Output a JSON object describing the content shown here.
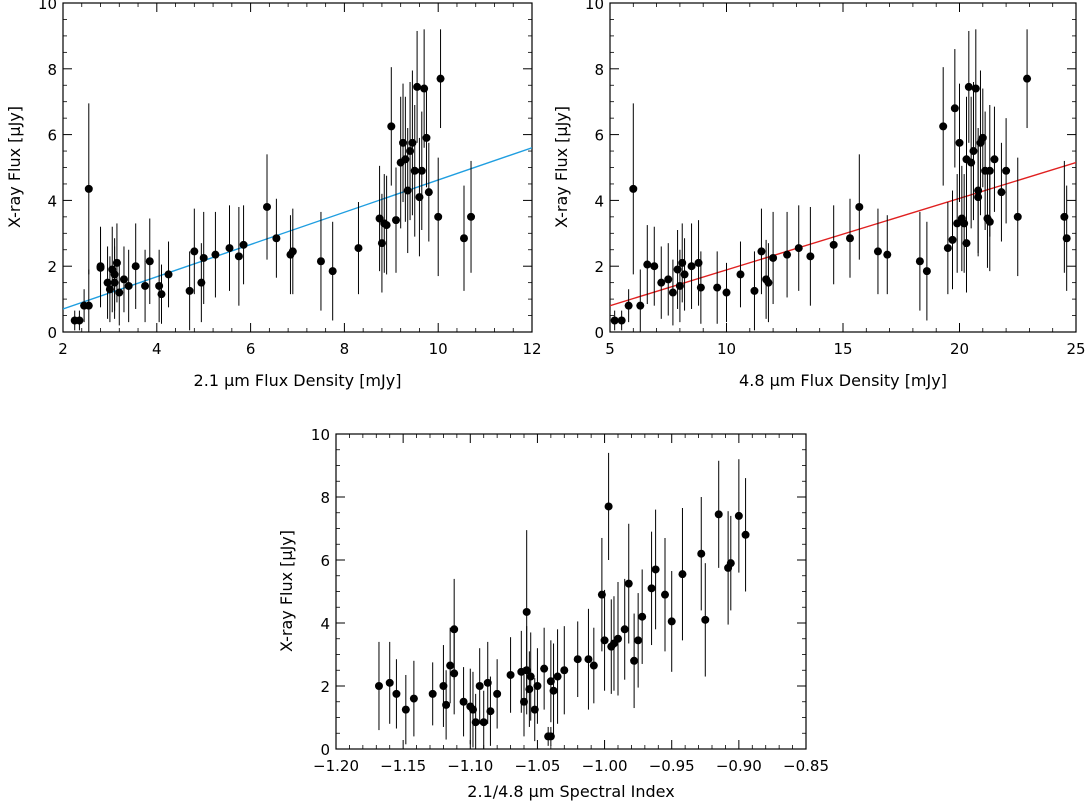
{
  "chart_data": [
    {
      "type": "scatter",
      "title": "",
      "xlabel": "2.1 μm Flux Density [mJy]",
      "ylabel": "X-ray Flux [μJy]",
      "xlim": [
        2,
        12
      ],
      "ylim": [
        0,
        10
      ],
      "xticks": [
        2,
        4,
        6,
        8,
        10,
        12
      ],
      "yticks": [
        0,
        2,
        4,
        6,
        8,
        10
      ],
      "grid": false,
      "fit_line": {
        "x": [
          2,
          12
        ],
        "y": [
          0.7,
          5.6
        ],
        "color": "#1f9ee0"
      },
      "points": [
        [
          2.25,
          0.35,
          0.3
        ],
        [
          2.35,
          0.35,
          0.3
        ],
        [
          2.45,
          0.8,
          0.5
        ],
        [
          2.55,
          0.8,
          1.1
        ],
        [
          2.55,
          4.35,
          2.6
        ],
        [
          2.8,
          2.0,
          1.2
        ],
        [
          2.8,
          1.95,
          1.2
        ],
        [
          2.95,
          1.5,
          1.1
        ],
        [
          3.0,
          1.3,
          1.0
        ],
        [
          3.05,
          1.9,
          1.3
        ],
        [
          3.1,
          1.5,
          1.1
        ],
        [
          3.1,
          1.75,
          1.1
        ],
        [
          3.15,
          2.1,
          1.2
        ],
        [
          3.2,
          1.2,
          1.0
        ],
        [
          3.3,
          1.6,
          1.0
        ],
        [
          3.4,
          1.4,
          1.1
        ],
        [
          3.55,
          2.0,
          1.3
        ],
        [
          3.75,
          1.4,
          1.1
        ],
        [
          3.85,
          2.15,
          1.3
        ],
        [
          4.05,
          1.4,
          1.1
        ],
        [
          4.1,
          1.15,
          0.9
        ],
        [
          4.25,
          1.75,
          1.0
        ],
        [
          4.7,
          1.25,
          1.2
        ],
        [
          4.8,
          2.45,
          1.3
        ],
        [
          4.95,
          1.5,
          1.2
        ],
        [
          5.0,
          2.25,
          1.4
        ],
        [
          5.25,
          2.35,
          1.3
        ],
        [
          5.55,
          2.55,
          1.3
        ],
        [
          5.75,
          2.3,
          1.5
        ],
        [
          5.85,
          2.65,
          1.2
        ],
        [
          6.35,
          3.8,
          1.6
        ],
        [
          6.55,
          2.85,
          1.2
        ],
        [
          6.85,
          2.35,
          1.2
        ],
        [
          6.9,
          2.45,
          1.3
        ],
        [
          7.5,
          2.15,
          1.5
        ],
        [
          7.75,
          1.85,
          1.5
        ],
        [
          8.3,
          2.55,
          1.4
        ],
        [
          8.75,
          3.45,
          1.6
        ],
        [
          8.8,
          2.7,
          1.5
        ],
        [
          8.85,
          3.3,
          1.5
        ],
        [
          8.9,
          3.25,
          1.5
        ],
        [
          9.0,
          6.25,
          1.8
        ],
        [
          9.1,
          3.4,
          1.6
        ],
        [
          9.2,
          5.15,
          2.0
        ],
        [
          9.25,
          5.75,
          1.8
        ],
        [
          9.3,
          5.25,
          1.9
        ],
        [
          9.35,
          4.3,
          1.9
        ],
        [
          9.4,
          5.5,
          2.1
        ],
        [
          9.45,
          5.75,
          2.2
        ],
        [
          9.5,
          4.9,
          2.0
        ],
        [
          9.55,
          7.45,
          1.7
        ],
        [
          9.6,
          4.1,
          1.8
        ],
        [
          9.65,
          4.9,
          1.8
        ],
        [
          9.7,
          7.4,
          1.8
        ],
        [
          9.75,
          5.9,
          1.5
        ],
        [
          9.8,
          4.25,
          1.5
        ],
        [
          10.0,
          3.5,
          1.8
        ],
        [
          10.05,
          7.7,
          1.5
        ],
        [
          10.55,
          2.85,
          1.6
        ],
        [
          10.7,
          3.5,
          1.7
        ]
      ]
    },
    {
      "type": "scatter",
      "title": "",
      "xlabel": "4.8 μm Flux Density [mJy]",
      "ylabel": "X-ray Flux [μJy]",
      "xlim": [
        5,
        25
      ],
      "ylim": [
        0,
        10
      ],
      "xticks": [
        5,
        10,
        15,
        20,
        25
      ],
      "yticks": [
        0,
        2,
        4,
        6,
        8,
        10
      ],
      "grid": false,
      "fit_line": {
        "x": [
          5,
          25
        ],
        "y": [
          0.8,
          5.15
        ],
        "color": "#e02020"
      },
      "points": [
        [
          5.2,
          0.35,
          0.3
        ],
        [
          5.5,
          0.35,
          0.3
        ],
        [
          5.8,
          0.8,
          0.5
        ],
        [
          6.0,
          4.35,
          2.6
        ],
        [
          6.3,
          0.8,
          1.1
        ],
        [
          6.6,
          2.05,
          1.2
        ],
        [
          6.9,
          2.0,
          1.2
        ],
        [
          7.2,
          1.5,
          1.1
        ],
        [
          7.5,
          1.6,
          1.1
        ],
        [
          7.7,
          1.2,
          1.0
        ],
        [
          7.9,
          1.9,
          1.2
        ],
        [
          8.0,
          1.4,
          1.1
        ],
        [
          8.1,
          2.1,
          1.2
        ],
        [
          8.2,
          1.75,
          1.1
        ],
        [
          8.5,
          2.0,
          1.3
        ],
        [
          8.8,
          2.1,
          1.3
        ],
        [
          8.9,
          1.35,
          1.1
        ],
        [
          9.6,
          1.35,
          1.1
        ],
        [
          10.0,
          1.2,
          0.9
        ],
        [
          10.6,
          1.75,
          1.0
        ],
        [
          11.2,
          1.25,
          1.2
        ],
        [
          11.5,
          2.45,
          1.3
        ],
        [
          11.7,
          1.6,
          1.2
        ],
        [
          11.8,
          1.5,
          1.2
        ],
        [
          12.0,
          2.25,
          1.4
        ],
        [
          12.6,
          2.35,
          1.3
        ],
        [
          13.1,
          2.55,
          1.3
        ],
        [
          13.6,
          2.3,
          1.5
        ],
        [
          14.6,
          2.65,
          1.2
        ],
        [
          15.3,
          2.85,
          1.2
        ],
        [
          15.7,
          3.8,
          1.6
        ],
        [
          16.5,
          2.45,
          1.3
        ],
        [
          16.9,
          2.35,
          1.2
        ],
        [
          18.3,
          2.15,
          1.5
        ],
        [
          18.6,
          1.85,
          1.5
        ],
        [
          19.3,
          6.25,
          1.8
        ],
        [
          19.5,
          2.55,
          1.4
        ],
        [
          19.7,
          2.8,
          1.5
        ],
        [
          19.8,
          6.8,
          1.8
        ],
        [
          19.9,
          3.3,
          1.5
        ],
        [
          20.0,
          5.75,
          1.8
        ],
        [
          20.1,
          3.45,
          1.6
        ],
        [
          20.2,
          3.3,
          1.5
        ],
        [
          20.3,
          5.25,
          1.9
        ],
        [
          20.3,
          2.7,
          1.5
        ],
        [
          20.4,
          7.45,
          1.7
        ],
        [
          20.5,
          5.15,
          2.0
        ],
        [
          20.6,
          5.5,
          2.1
        ],
        [
          20.7,
          7.4,
          1.8
        ],
        [
          20.8,
          4.1,
          1.8
        ],
        [
          20.8,
          4.3,
          1.9
        ],
        [
          20.9,
          5.75,
          2.2
        ],
        [
          21.0,
          5.9,
          1.5
        ],
        [
          21.1,
          4.9,
          1.8
        ],
        [
          21.2,
          3.45,
          1.5
        ],
        [
          21.3,
          4.9,
          2.0
        ],
        [
          21.5,
          5.25,
          1.6
        ],
        [
          21.3,
          3.35,
          1.5
        ],
        [
          22.0,
          4.9,
          1.6
        ],
        [
          22.5,
          3.5,
          1.8
        ],
        [
          22.9,
          7.7,
          1.5
        ],
        [
          24.5,
          3.5,
          1.7
        ],
        [
          24.6,
          2.85,
          1.6
        ],
        [
          21.8,
          4.25,
          1.5
        ]
      ]
    },
    {
      "type": "scatter",
      "title": "",
      "xlabel": "2.1/4.8 μm Spectral Index",
      "ylabel": "X-ray Flux [μJy]",
      "xlim": [
        -1.2,
        -0.85
      ],
      "ylim": [
        0,
        10
      ],
      "xticks": [
        -1.2,
        -1.15,
        -1.1,
        -1.05,
        -1.0,
        -0.95,
        -0.9,
        -0.85
      ],
      "xticklabels": [
        "−1.20",
        "−1.15",
        "−1.10",
        "−1.05",
        "−1.00",
        "−0.95",
        "−0.90",
        "−0.85"
      ],
      "yticks": [
        0,
        2,
        4,
        6,
        8,
        10
      ],
      "grid": false,
      "points": [
        [
          -1.168,
          2.0,
          1.4
        ],
        [
          -1.16,
          2.1,
          1.3
        ],
        [
          -1.155,
          1.75,
          1.1
        ],
        [
          -1.148,
          1.25,
          1.1
        ],
        [
          -1.142,
          1.6,
          1.2
        ],
        [
          -1.128,
          1.75,
          1.0
        ],
        [
          -1.12,
          2.0,
          1.3
        ],
        [
          -1.118,
          1.4,
          1.1
        ],
        [
          -1.115,
          2.65,
          1.2
        ],
        [
          -1.112,
          2.4,
          1.3
        ],
        [
          -1.112,
          3.8,
          1.6
        ],
        [
          -1.105,
          1.5,
          1.1
        ],
        [
          -1.1,
          1.35,
          1.2
        ],
        [
          -1.098,
          1.25,
          1.2
        ],
        [
          -1.096,
          0.85,
          0.9
        ],
        [
          -1.093,
          2.0,
          1.2
        ],
        [
          -1.09,
          0.85,
          1.0
        ],
        [
          -1.087,
          2.1,
          1.3
        ],
        [
          -1.085,
          1.2,
          1.1
        ],
        [
          -1.08,
          1.75,
          1.1
        ],
        [
          -1.07,
          2.35,
          1.2
        ],
        [
          -1.062,
          2.45,
          1.3
        ],
        [
          -1.06,
          1.5,
          1.1
        ],
        [
          -1.058,
          2.5,
          1.4
        ],
        [
          -1.058,
          4.35,
          2.6
        ],
        [
          -1.056,
          1.9,
          1.2
        ],
        [
          -1.055,
          2.3,
          1.4
        ],
        [
          -1.052,
          1.25,
          1.0
        ],
        [
          -1.05,
          2.0,
          1.2
        ],
        [
          -1.045,
          2.55,
          1.3
        ],
        [
          -1.042,
          0.4,
          0.3
        ],
        [
          -1.04,
          0.4,
          0.3
        ],
        [
          -1.04,
          2.15,
          1.3
        ],
        [
          -1.038,
          1.85,
          1.5
        ],
        [
          -1.035,
          2.3,
          1.5
        ],
        [
          -1.03,
          2.5,
          1.4
        ],
        [
          -1.02,
          2.85,
          1.2
        ],
        [
          -1.012,
          2.85,
          1.6
        ],
        [
          -1.008,
          2.65,
          1.2
        ],
        [
          -1.002,
          4.9,
          1.8
        ],
        [
          -1.0,
          3.45,
          1.6
        ],
        [
          -0.997,
          7.7,
          1.7
        ],
        [
          -0.995,
          3.25,
          1.5
        ],
        [
          -0.993,
          3.35,
          1.5
        ],
        [
          -0.99,
          3.5,
          1.8
        ],
        [
          -0.985,
          3.8,
          1.6
        ],
        [
          -0.982,
          5.25,
          1.9
        ],
        [
          -0.978,
          2.8,
          1.5
        ],
        [
          -0.975,
          3.45,
          1.5
        ],
        [
          -0.972,
          4.2,
          1.5
        ],
        [
          -0.965,
          5.1,
          1.8
        ],
        [
          -0.962,
          5.7,
          1.9
        ],
        [
          -0.955,
          4.9,
          1.8
        ],
        [
          -0.95,
          4.05,
          1.6
        ],
        [
          -0.942,
          5.55,
          2.1
        ],
        [
          -0.928,
          6.2,
          1.8
        ],
        [
          -0.925,
          4.1,
          1.8
        ],
        [
          -0.915,
          7.45,
          1.7
        ],
        [
          -0.908,
          5.75,
          1.8
        ],
        [
          -0.906,
          5.9,
          1.5
        ],
        [
          -0.9,
          7.4,
          1.8
        ],
        [
          -0.895,
          6.8,
          1.8
        ]
      ]
    }
  ]
}
